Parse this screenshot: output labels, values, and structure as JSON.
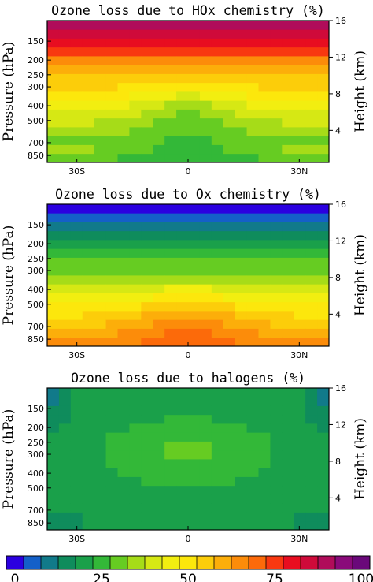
{
  "palette": [
    "#2b00e0",
    "#1460c8",
    "#117a8a",
    "#0f8c5c",
    "#1aa04a",
    "#33b838",
    "#66cc22",
    "#a6dc18",
    "#d6e814",
    "#f2ee10",
    "#fce70c",
    "#fccd0a",
    "#fcae0a",
    "#fc8c0a",
    "#fc6a0a",
    "#f83810",
    "#e80d20",
    "#cf0a3a",
    "#b00c5a",
    "#8a0a7a",
    "#6a087a"
  ],
  "chart_data": [
    {
      "type": "heatmap",
      "title": "Ozone loss due to HOx chemistry (%)",
      "xlabel": "",
      "ylabel": "Pressure (hPa)",
      "y2label": "Height (km)",
      "x_ticks": [
        {
          "value": -30,
          "label": "30S"
        },
        {
          "value": 0,
          "label": "0"
        },
        {
          "value": 30,
          "label": "30N"
        }
      ],
      "y_ticks": [
        {
          "value": 150,
          "label": "150"
        },
        {
          "value": 200,
          "label": "200"
        },
        {
          "value": 250,
          "label": "250"
        },
        {
          "value": 300,
          "label": "300"
        },
        {
          "value": 400,
          "label": "400"
        },
        {
          "value": 500,
          "label": "500"
        },
        {
          "value": 700,
          "label": "700"
        },
        {
          "value": 850,
          "label": "850"
        }
      ],
      "y2_ticks": [
        {
          "value": 4,
          "label": "4"
        },
        {
          "value": 8,
          "label": "8"
        },
        {
          "value": 12,
          "label": "12"
        },
        {
          "value": 16,
          "label": "16"
        }
      ],
      "xlim": [
        -38,
        38
      ],
      "ylim_km": [
        0.5,
        16
      ],
      "colorbar_range": [
        0,
        100
      ],
      "z_model": {
        "base": 40,
        "amp": 0,
        "lat_w": 30,
        "height_scale": 8,
        "height_center": 10,
        "dip_amp": 0
      }
    },
    {
      "type": "heatmap",
      "title": "Ozone loss due to Ox chemistry (%)",
      "xlabel": "",
      "ylabel": "Pressure (hPa)",
      "y2label": "Height (km)",
      "x_ticks": [
        {
          "value": -30,
          "label": "30S"
        },
        {
          "value": 0,
          "label": "0"
        },
        {
          "value": 30,
          "label": "30N"
        }
      ],
      "y_ticks": [
        {
          "value": 150,
          "label": "150"
        },
        {
          "value": 200,
          "label": "200"
        },
        {
          "value": 250,
          "label": "250"
        },
        {
          "value": 300,
          "label": "300"
        },
        {
          "value": 400,
          "label": "400"
        },
        {
          "value": 500,
          "label": "500"
        },
        {
          "value": 700,
          "label": "700"
        },
        {
          "value": 850,
          "label": "850"
        }
      ],
      "y2_ticks": [
        {
          "value": 4,
          "label": "4"
        },
        {
          "value": 8,
          "label": "8"
        },
        {
          "value": 12,
          "label": "12"
        },
        {
          "value": 16,
          "label": "16"
        }
      ],
      "xlim": [
        -38,
        38
      ],
      "ylim_km": [
        0.5,
        16
      ],
      "colorbar_range": [
        0,
        100
      ]
    },
    {
      "type": "heatmap",
      "title": "Ozone loss due to halogens (%)",
      "xlabel": "",
      "ylabel": "Pressure (hPa)",
      "y2label": "Height (km)",
      "x_ticks": [
        {
          "value": -30,
          "label": "30S"
        },
        {
          "value": 0,
          "label": "0"
        },
        {
          "value": 30,
          "label": "30N"
        }
      ],
      "y_ticks": [
        {
          "value": 150,
          "label": "150"
        },
        {
          "value": 200,
          "label": "200"
        },
        {
          "value": 250,
          "label": "250"
        },
        {
          "value": 300,
          "label": "300"
        },
        {
          "value": 400,
          "label": "400"
        },
        {
          "value": 500,
          "label": "500"
        },
        {
          "value": 700,
          "label": "700"
        },
        {
          "value": 850,
          "label": "850"
        }
      ],
      "y2_ticks": [
        {
          "value": 4,
          "label": "4"
        },
        {
          "value": 8,
          "label": "8"
        },
        {
          "value": 12,
          "label": "12"
        },
        {
          "value": 16,
          "label": "16"
        }
      ],
      "xlim": [
        -38,
        38
      ],
      "ylim_km": [
        0.5,
        16
      ],
      "colorbar_range": [
        0,
        100
      ]
    }
  ],
  "colorbar": {
    "min": 0,
    "max": 100,
    "step": 5,
    "labels": [
      {
        "value": 0,
        "label": "0"
      },
      {
        "value": 25,
        "label": "25"
      },
      {
        "value": 50,
        "label": "50"
      },
      {
        "value": 75,
        "label": "75"
      },
      {
        "value": 100,
        "label": "100"
      }
    ]
  }
}
